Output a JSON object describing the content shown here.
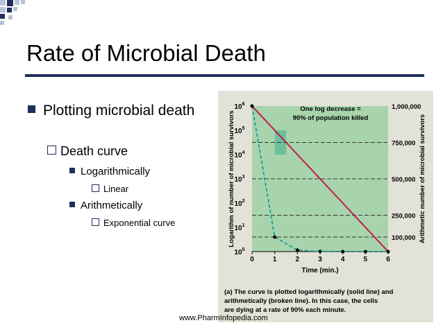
{
  "slide": {
    "title": "Rate of Microbial Death",
    "bullets": {
      "level1": "Plotting microbial death",
      "level2": "Death curve",
      "log": "Logarithmically",
      "log_sub": "Linear",
      "arith": "Arithmetically",
      "arith_sub": "Exponential curve"
    },
    "footer": "www.PharmInfopedia.com"
  },
  "colors": {
    "accent": "#1f2e5c",
    "corner_light": "#b8c2d8",
    "plot_bg": "#a8d4ac",
    "log_line": "#c4164e",
    "arith_line": "#1a9a9a"
  },
  "chart_data": {
    "type": "line",
    "caption_letter": "(a)",
    "caption": "The curve is plotted logarithmically (solid line) and arithmetically (broken line). In this case, the cells are dying at a rate of 90% each minute.",
    "annotation_line1": "One log decrease =",
    "annotation_line2": "90% of population killed",
    "xlabel": "Time (min.)",
    "ylabel_left": "Logarithm of number of microbial survivors",
    "ylabel_right": "Arithmetic number of microbial survivors",
    "xlim": [
      0,
      6
    ],
    "x_ticks": [
      "0",
      "1",
      "2",
      "3",
      "4",
      "5",
      "6"
    ],
    "left_ylim_log10": [
      0,
      6
    ],
    "left_ticks": [
      {
        "exp": 0,
        "base": "10",
        "sup": "0"
      },
      {
        "exp": 1,
        "base": "10",
        "sup": "1"
      },
      {
        "exp": 2,
        "base": "10",
        "sup": "2"
      },
      {
        "exp": 3,
        "base": "10",
        "sup": "3"
      },
      {
        "exp": 4,
        "base": "10",
        "sup": "4"
      },
      {
        "exp": 5,
        "base": "10",
        "sup": "5"
      },
      {
        "exp": 6,
        "base": "10",
        "sup": "6"
      }
    ],
    "right_ylim": [
      0,
      1000000
    ],
    "right_ticks": [
      {
        "value": 100000,
        "label": "100,000"
      },
      {
        "value": 250000,
        "label": "250,000"
      },
      {
        "value": 500000,
        "label": "500,000"
      },
      {
        "value": 750000,
        "label": "750,000"
      },
      {
        "value": 1000000,
        "label": "1,000,000"
      }
    ],
    "series": [
      {
        "name": "logarithmic",
        "style": "solid",
        "x": [
          0,
          1,
          2,
          3,
          4,
          5,
          6
        ],
        "log10_y": [
          6,
          5,
          4,
          3,
          2,
          1,
          0
        ]
      },
      {
        "name": "arithmetic",
        "style": "dashed",
        "x": [
          0,
          1,
          2,
          3,
          4,
          5,
          6
        ],
        "y": [
          1000000,
          100000,
          10000,
          1000,
          100,
          10,
          1
        ]
      }
    ],
    "highlight_interval": {
      "x": [
        1,
        1.5
      ],
      "log10_y": [
        4,
        5
      ]
    }
  }
}
